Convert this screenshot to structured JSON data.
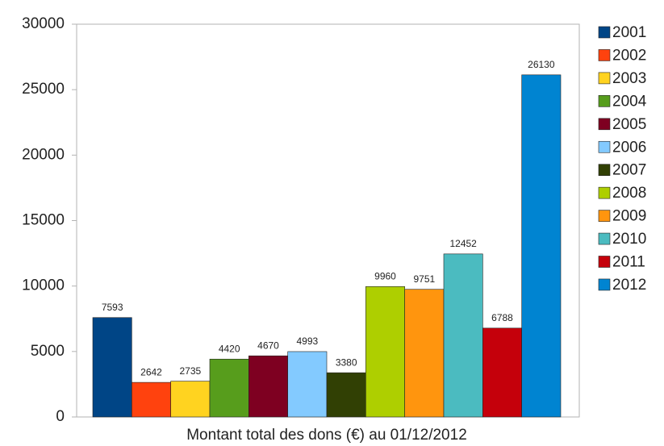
{
  "chart_data": {
    "type": "bar",
    "xlabel": "Montant total des dons (€) au 01/12/2012",
    "categories": [
      null
    ],
    "series": [
      {
        "name": "2001",
        "color": "#004586",
        "values": [
          7593
        ]
      },
      {
        "name": "2002",
        "color": "#ff420e",
        "values": [
          2642
        ]
      },
      {
        "name": "2003",
        "color": "#ffd320",
        "values": [
          2735
        ]
      },
      {
        "name": "2004",
        "color": "#579d1c",
        "values": [
          4420
        ]
      },
      {
        "name": "2005",
        "color": "#7e0021",
        "values": [
          4670
        ]
      },
      {
        "name": "2006",
        "color": "#83caff",
        "values": [
          4993
        ]
      },
      {
        "name": "2007",
        "color": "#314004",
        "values": [
          3380
        ]
      },
      {
        "name": "2008",
        "color": "#aecf00",
        "values": [
          9960
        ]
      },
      {
        "name": "2009",
        "color": "#ff950e",
        "values": [
          9751
        ]
      },
      {
        "name": "2010",
        "color": "#4bbbc0",
        "values": [
          12452
        ]
      },
      {
        "name": "2011",
        "color": "#c5000b",
        "values": [
          6788
        ]
      },
      {
        "name": "2012",
        "color": "#0084d1",
        "values": [
          26130
        ]
      }
    ],
    "ylim": [
      0,
      30000
    ],
    "yticks": [
      0,
      5000,
      10000,
      15000,
      20000,
      25000,
      30000
    ],
    "grid": false,
    "legend": "right"
  }
}
